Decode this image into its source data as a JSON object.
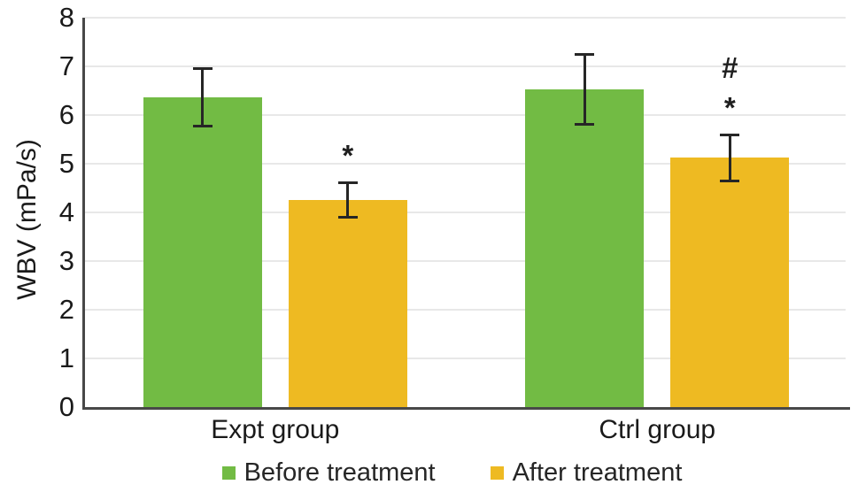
{
  "chart_data": {
    "type": "bar",
    "categories": [
      "Expt group",
      "Ctrl group"
    ],
    "series": [
      {
        "name": "Before treatment",
        "color": "#72bb44",
        "values": [
          6.37,
          6.53
        ],
        "errors": [
          0.6,
          0.73
        ]
      },
      {
        "name": "After treatment",
        "color": "#eeba22",
        "values": [
          4.26,
          5.12
        ],
        "errors": [
          0.36,
          0.48
        ]
      }
    ],
    "annotations": [
      {
        "category_index": 0,
        "series_index": 1,
        "symbols": [
          "*"
        ]
      },
      {
        "category_index": 1,
        "series_index": 1,
        "symbols": [
          "#",
          "*"
        ]
      }
    ],
    "title": "",
    "xlabel": "",
    "ylabel": "WBV (mPa/s)",
    "ylim": [
      0,
      8
    ],
    "ytick_step": 1,
    "grid": true,
    "legend_position": "bottom",
    "colors": {
      "error_bar": "#262626",
      "axis": "#484848",
      "gridline": "#e8e8e8",
      "text": "#1a1a1a"
    }
  }
}
